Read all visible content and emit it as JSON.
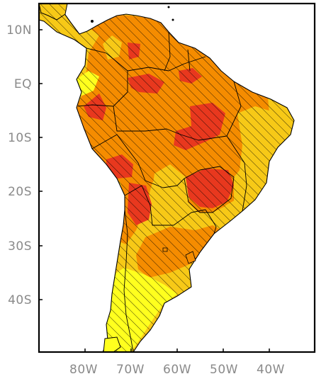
{
  "map": {
    "lat_labels": [
      "10N",
      "EQ",
      "10S",
      "20S",
      "30S",
      "40S"
    ],
    "lon_labels": [
      "80W",
      "70W",
      "60W",
      "50W",
      "40W"
    ],
    "colors": {
      "yellow": "#ffff1e",
      "gold": "#f7c917",
      "orange": "#f58c00",
      "red": "#e8381e",
      "ocean": "#ffffff",
      "frame": "#000000",
      "hatch": "#000000"
    }
  }
}
